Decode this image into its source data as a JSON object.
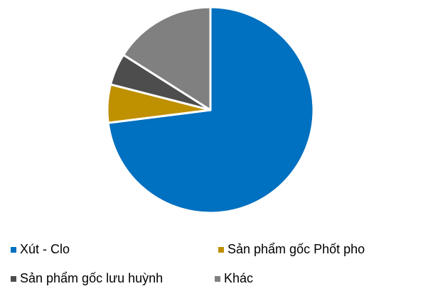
{
  "chart_data": {
    "type": "pie",
    "categories": [
      "Xút - Clo",
      "Sản phẩm gốc Phốt pho",
      "Sản phẩm gốc lưu huỳnh",
      "Khác"
    ],
    "values": [
      73,
      6,
      5,
      16
    ],
    "colors": [
      "#0070c0",
      "#bf9000",
      "#4d4d4d",
      "#808080"
    ],
    "legend": "bottom"
  }
}
